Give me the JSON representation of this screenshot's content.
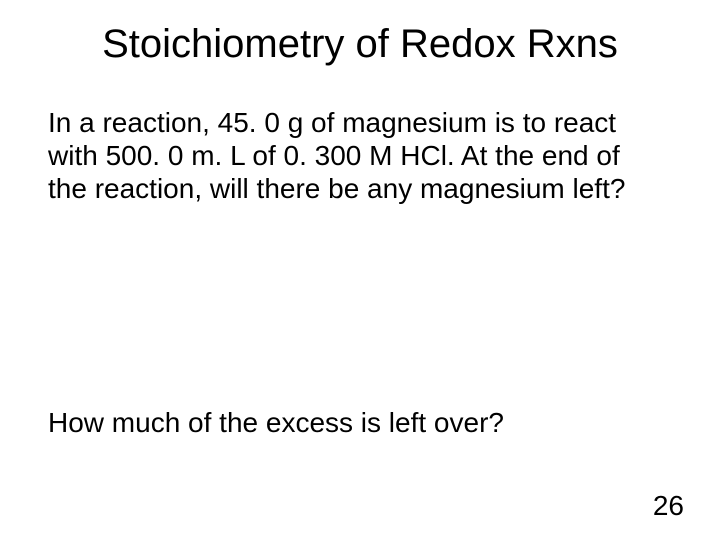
{
  "slide": {
    "title": "Stoichiometry of Redox Rxns",
    "paragraph1": "In a reaction, 45. 0 g of magnesium is to react with 500. 0 m. L of 0. 300 M HCl.  At the end of the reaction, will there be any magnesium left?",
    "paragraph2": "How much of the excess is left over?",
    "page_number": "26",
    "background_color": "#ffffff",
    "text_color": "#000000",
    "title_fontsize": 40,
    "body_fontsize": 28,
    "font_family": "Arial"
  }
}
